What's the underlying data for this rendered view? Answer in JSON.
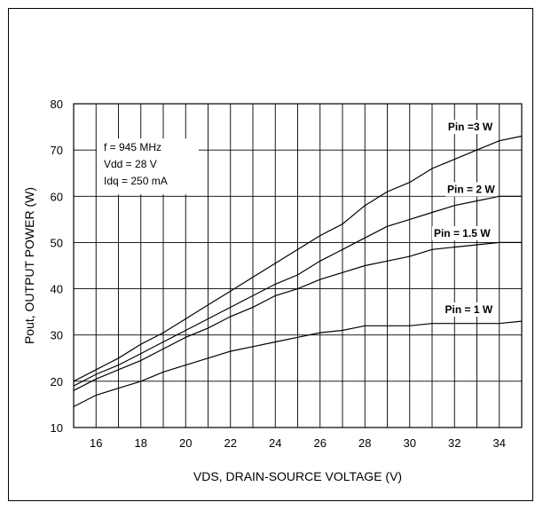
{
  "chart_data": {
    "type": "line",
    "title": "",
    "xlabel": "VDS, DRAIN-SOURCE VOLTAGE (V)",
    "ylabel": "Pout, OUTPUT POWER (W)",
    "xlim": [
      15,
      35
    ],
    "ylim": [
      10,
      80
    ],
    "grid": true,
    "x_ticks": [
      16,
      18,
      20,
      22,
      24,
      26,
      28,
      30,
      32,
      34
    ],
    "y_ticks": [
      10,
      20,
      30,
      40,
      50,
      60,
      70,
      80
    ],
    "annotations": [
      "f = 945 MHz",
      "Vdd = 28 V",
      "Idq = 250 mA"
    ],
    "series": [
      {
        "name": "Pin =3 W",
        "x": [
          15,
          16,
          17,
          18,
          19,
          20,
          21,
          22,
          23,
          24,
          25,
          26,
          27,
          28,
          29,
          30,
          31,
          32,
          33,
          34,
          35
        ],
        "y": [
          20.0,
          22.5,
          25.0,
          28.0,
          30.5,
          33.5,
          36.5,
          39.5,
          42.5,
          45.5,
          48.5,
          51.5,
          54.0,
          58.0,
          61.0,
          63.0,
          66.0,
          68.0,
          70.0,
          72.0,
          73.0
        ]
      },
      {
        "name": "Pin = 2 W",
        "x": [
          15,
          16,
          17,
          18,
          19,
          20,
          21,
          22,
          23,
          24,
          25,
          26,
          27,
          28,
          29,
          30,
          31,
          32,
          33,
          34,
          35
        ],
        "y": [
          19.0,
          21.5,
          23.5,
          26.0,
          28.5,
          31.0,
          33.5,
          36.0,
          38.5,
          41.0,
          43.0,
          46.0,
          48.5,
          51.0,
          53.5,
          55.0,
          56.5,
          58.0,
          59.0,
          60.0,
          60.0
        ]
      },
      {
        "name": "Pin = 1.5 W",
        "x": [
          15,
          16,
          17,
          18,
          19,
          20,
          21,
          22,
          23,
          24,
          25,
          26,
          27,
          28,
          29,
          30,
          31,
          32,
          33,
          34,
          35
        ],
        "y": [
          18.0,
          20.5,
          22.5,
          24.5,
          27.0,
          29.5,
          31.5,
          34.0,
          36.0,
          38.5,
          40.0,
          42.0,
          43.5,
          45.0,
          46.0,
          47.0,
          48.5,
          49.0,
          49.5,
          50.0,
          50.0
        ]
      },
      {
        "name": "Pin = 1 W",
        "x": [
          15,
          16,
          17,
          18,
          19,
          20,
          21,
          22,
          23,
          24,
          25,
          26,
          27,
          28,
          29,
          30,
          31,
          32,
          33,
          34,
          35
        ],
        "y": [
          14.5,
          17.0,
          18.5,
          20.0,
          22.0,
          23.5,
          25.0,
          26.5,
          27.5,
          28.5,
          29.5,
          30.5,
          31.0,
          32.0,
          32.0,
          32.0,
          32.5,
          32.5,
          32.5,
          32.5,
          33.0
        ]
      }
    ],
    "series_labels_at": [
      {
        "name": "Pin =3 W",
        "x": 33.7,
        "y": 75
      },
      {
        "name": "Pin = 2 W",
        "x": 33.8,
        "y": 61.5
      },
      {
        "name": "Pin = 1.5 W",
        "x": 33.6,
        "y": 52
      },
      {
        "name": "Pin = 1 W",
        "x": 33.7,
        "y": 35.5
      }
    ]
  }
}
